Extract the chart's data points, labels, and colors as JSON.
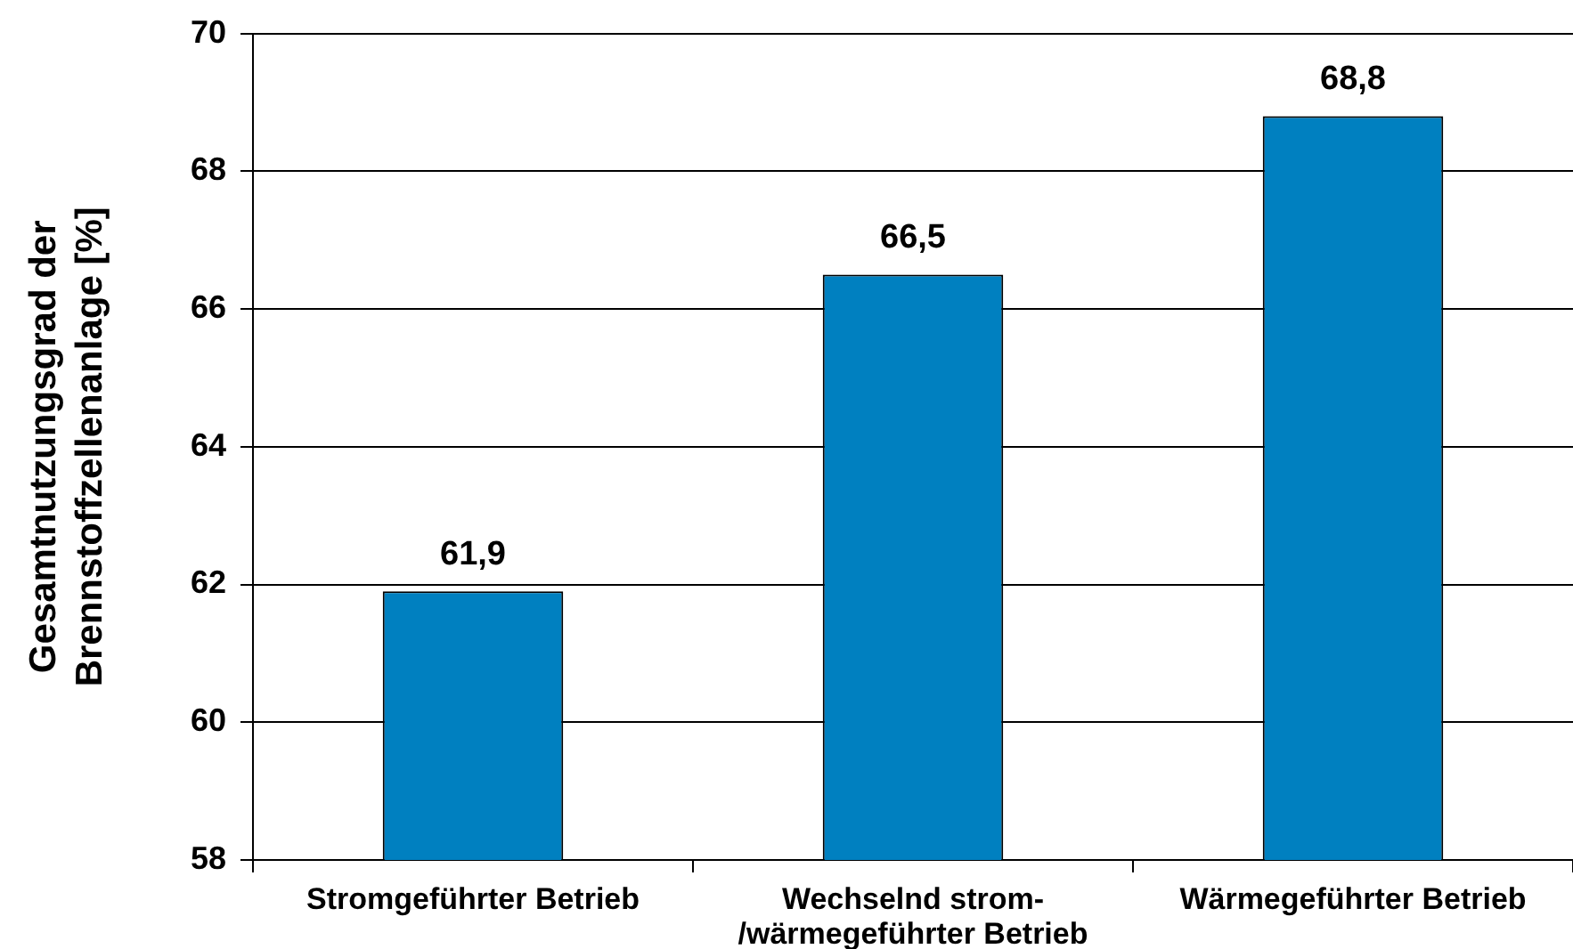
{
  "chart_data": {
    "type": "bar",
    "categories": [
      "Stromgeführter Betrieb",
      "Wechselnd strom-\n/wärmegeführter Betrieb",
      "Wärmegeführter Betrieb"
    ],
    "values": [
      61.9,
      66.5,
      68.8
    ],
    "color": "#0080c0",
    "value_labels": [
      "61,9",
      "66,5",
      "68,8"
    ],
    "ylabel": "Gesamtnutzungsgrad der\nBrennstoffzellenanlage [%]",
    "ylim": [
      58,
      70
    ],
    "yticks": [
      58,
      60,
      62,
      64,
      66,
      68,
      70
    ],
    "grid": "y",
    "legend": false
  }
}
